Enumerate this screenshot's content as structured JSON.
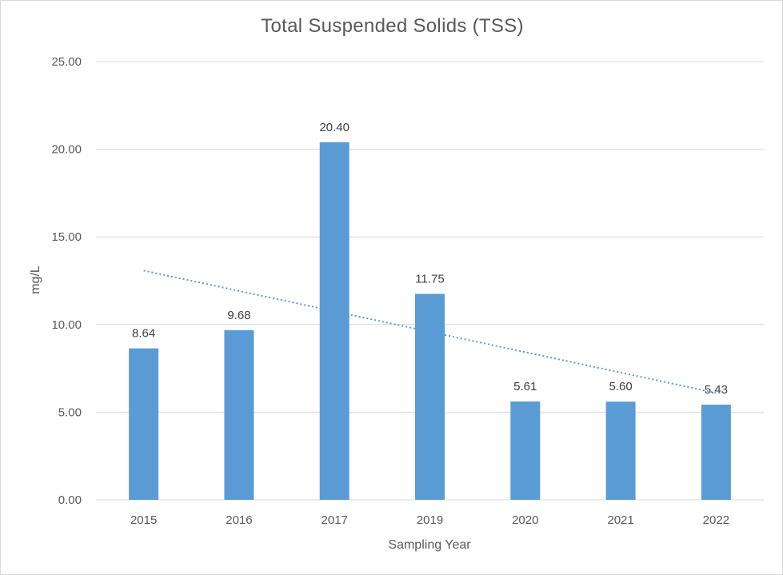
{
  "chart_data": {
    "type": "bar",
    "title": "Total Suspended Solids (TSS)",
    "xlabel": "Sampling Year",
    "ylabel": "mg/L",
    "categories": [
      "2015",
      "2016",
      "2017",
      "2019",
      "2020",
      "2021",
      "2022"
    ],
    "values": [
      8.64,
      9.68,
      20.4,
      11.75,
      5.61,
      5.6,
      5.43
    ],
    "data_labels": [
      "8.64",
      "9.68",
      "20.40",
      "11.75",
      "5.61",
      "5.60",
      "5.43"
    ],
    "ylim": [
      0,
      25
    ],
    "yticks": [
      0,
      5,
      10,
      15,
      20,
      25
    ],
    "ytick_labels": [
      "0.00",
      "5.00",
      "10.00",
      "15.00",
      "20.00",
      "25.00"
    ],
    "grid": true,
    "legend": "none",
    "trendline": {
      "type": "linear",
      "style": "dotted"
    },
    "colors": {
      "bar": "#5b9bd5",
      "trendline": "#5b9bd5",
      "grid": "#d9d9d9"
    }
  }
}
